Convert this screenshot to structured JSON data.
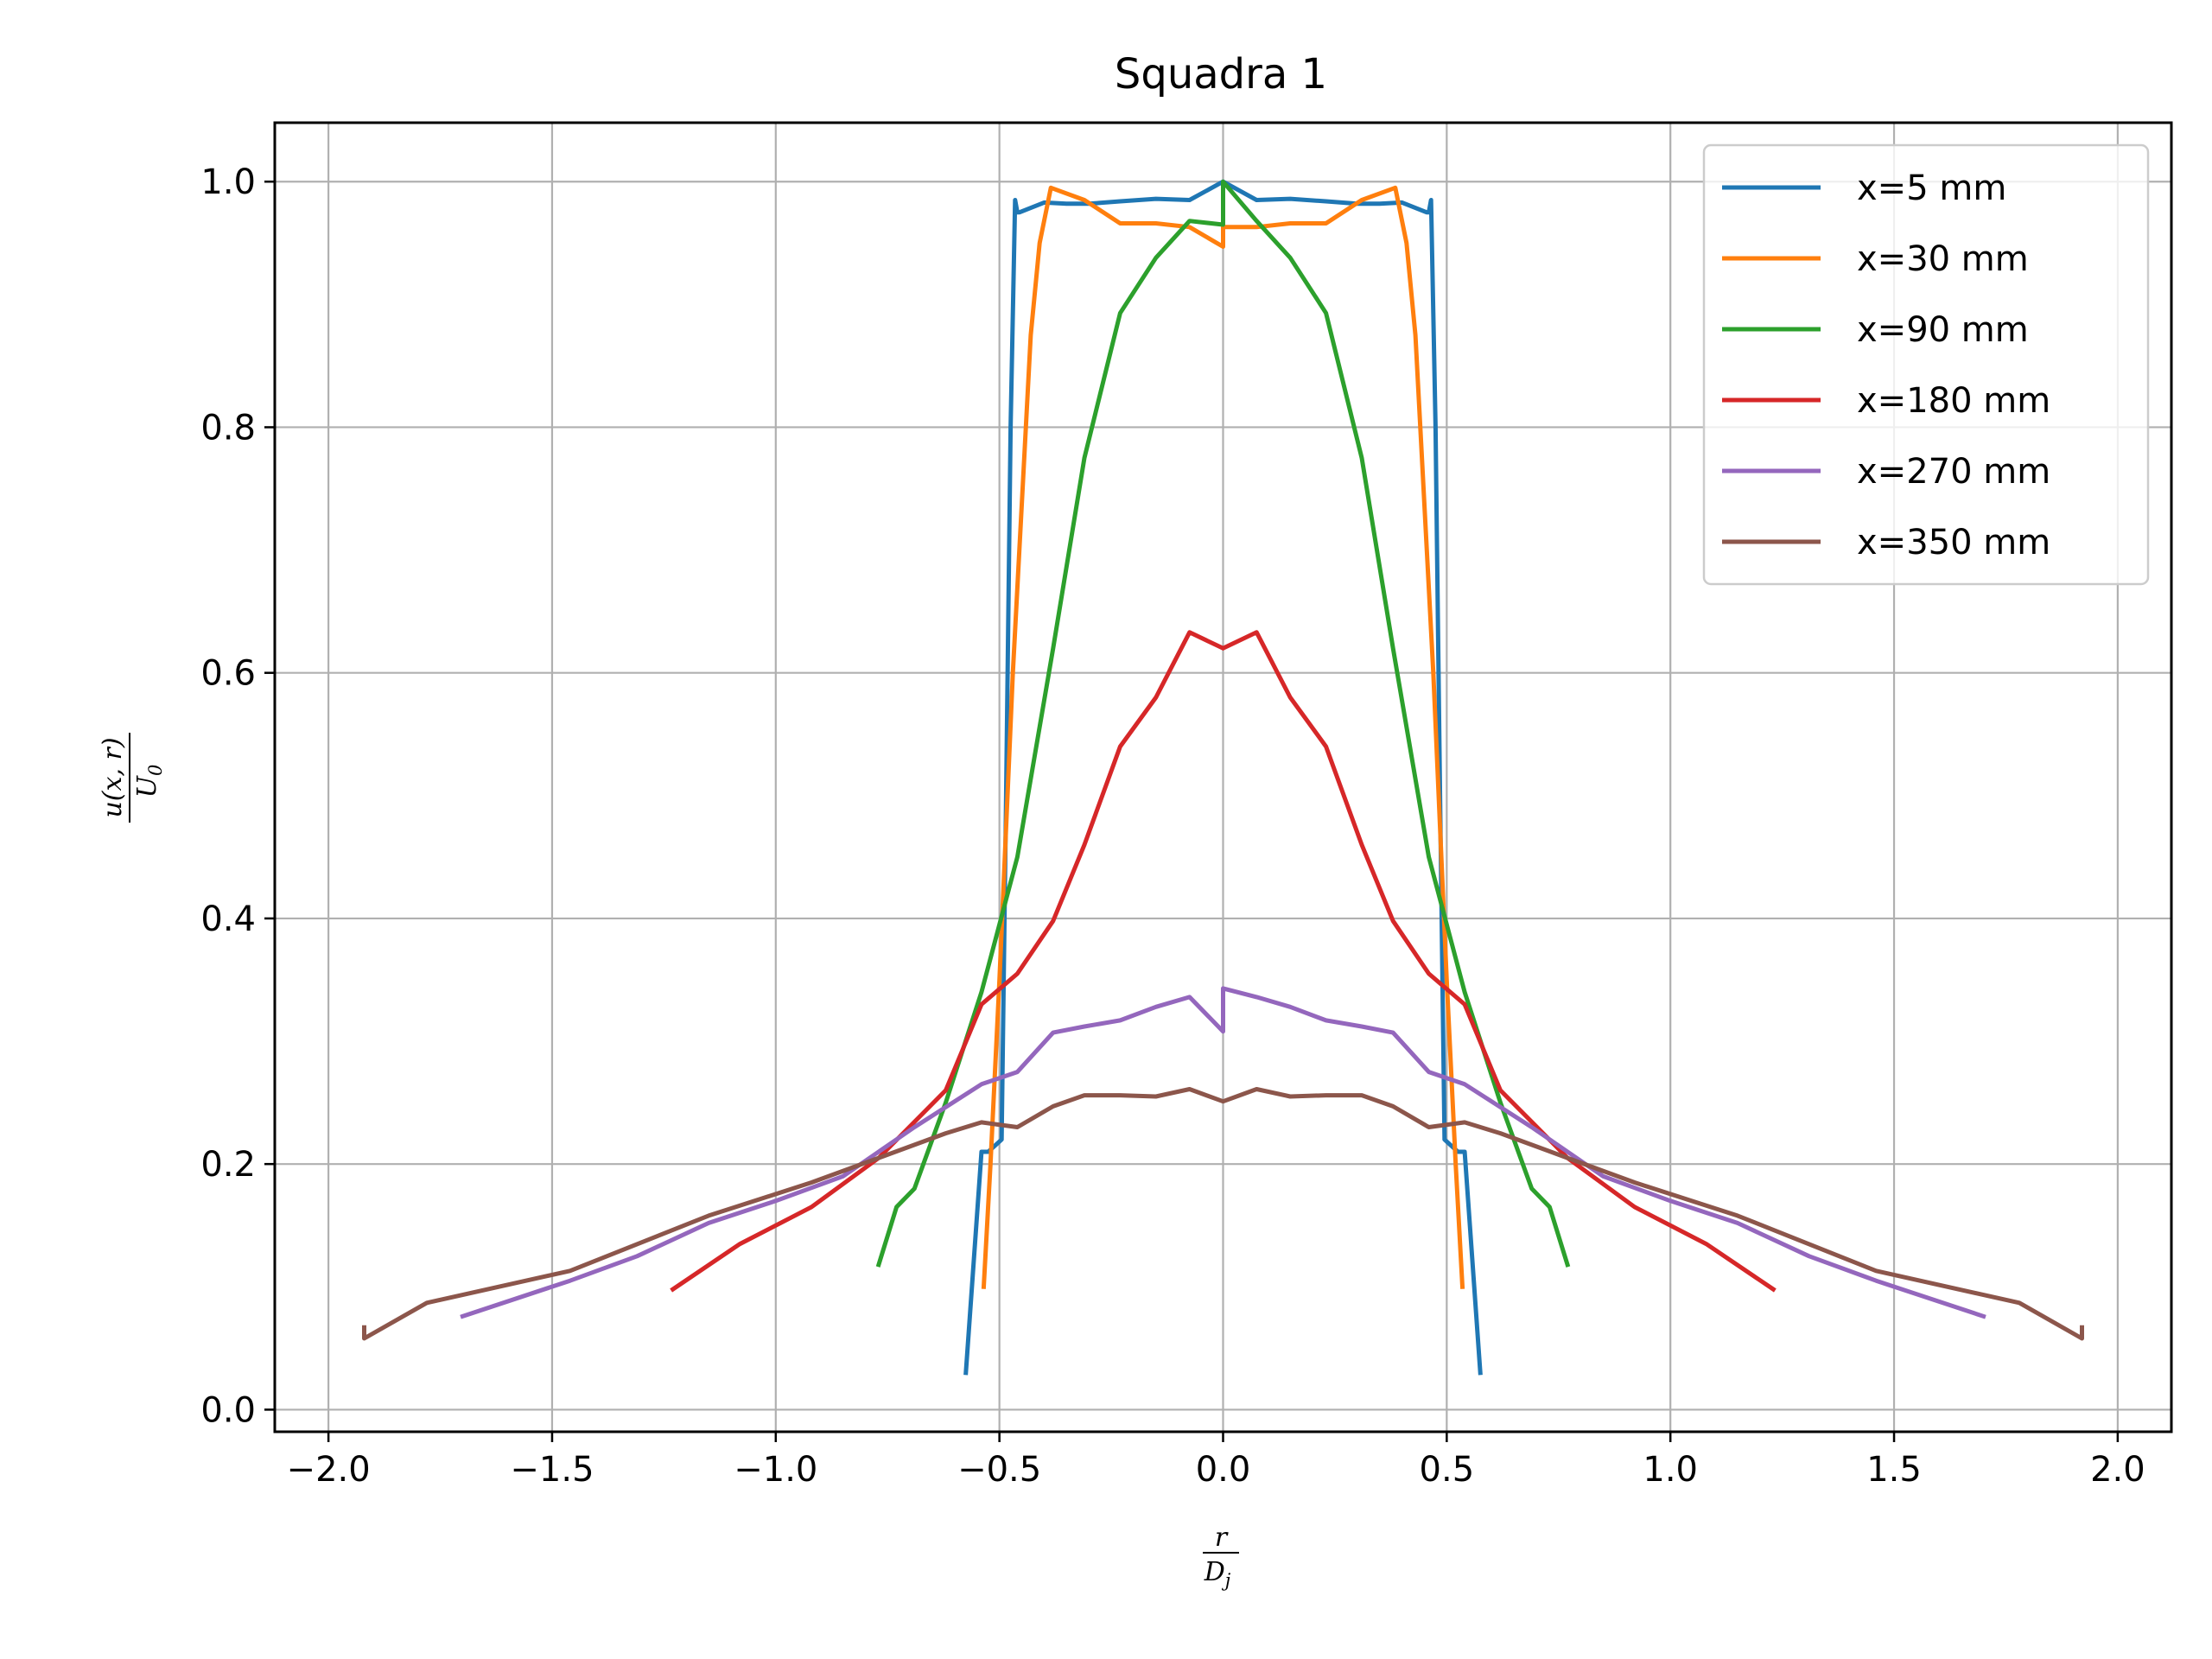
{
  "chart_data": {
    "type": "line",
    "title": "Squadra 1",
    "xlabel": {
      "num": "r",
      "den": "D",
      "den_sub": "j"
    },
    "ylabel": {
      "num": "u(x, r)",
      "den": "U",
      "den_sub": "0"
    },
    "xlim": [
      -2.12,
      2.12
    ],
    "ylim": [
      -0.018,
      1.048
    ],
    "xticks": [
      -2.0,
      -1.5,
      -1.0,
      -0.5,
      0.0,
      0.5,
      1.0,
      1.5,
      2.0
    ],
    "xtick_labels": [
      "−2.0",
      "−1.5",
      "−1.0",
      "−0.5",
      "0.0",
      "0.5",
      "1.0",
      "1.5",
      "2.0"
    ],
    "yticks": [
      0.0,
      0.2,
      0.4,
      0.6,
      0.8,
      1.0
    ],
    "ytick_labels": [
      "0.0",
      "0.2",
      "0.4",
      "0.6",
      "0.8",
      "1.0"
    ],
    "grid": true,
    "legend_position": "top-right",
    "series": [
      {
        "name": "x=5 mm",
        "color": "#1f77b4",
        "x": [
          -0.575,
          -0.54,
          -0.525,
          -0.51,
          -0.495,
          -0.485,
          -0.475,
          -0.465,
          -0.46,
          -0.455,
          -0.4,
          -0.35,
          -0.3,
          -0.23,
          -0.15,
          -0.075,
          0.0,
          0.075,
          0.15,
          0.23,
          0.3,
          0.35,
          0.4,
          0.455,
          0.46,
          0.465,
          0.475,
          0.485,
          0.495,
          0.51,
          0.525,
          0.54,
          0.575
        ],
        "y": [
          0.03,
          0.21,
          0.21,
          0.215,
          0.22,
          0.5,
          0.8,
          0.985,
          0.975,
          0.975,
          0.983,
          0.982,
          0.982,
          0.984,
          0.986,
          0.985,
          1.0,
          0.985,
          0.986,
          0.984,
          0.982,
          0.982,
          0.983,
          0.975,
          0.975,
          0.985,
          0.8,
          0.5,
          0.22,
          0.215,
          0.21,
          0.21,
          0.03
        ]
      },
      {
        "name": "x=30 mm",
        "color": "#ff7f0e",
        "x": [
          -0.535,
          -0.52,
          -0.5,
          -0.47,
          -0.43,
          -0.41,
          -0.385,
          -0.31,
          -0.23,
          -0.15,
          -0.075,
          0.0,
          0.0,
          0.075,
          0.15,
          0.23,
          0.31,
          0.385,
          0.41,
          0.43,
          0.47,
          0.5,
          0.52,
          0.535
        ],
        "y": [
          0.1,
          0.2,
          0.35,
          0.6,
          0.875,
          0.95,
          0.995,
          0.985,
          0.966,
          0.966,
          0.963,
          0.947,
          0.963,
          0.963,
          0.966,
          0.966,
          0.985,
          0.995,
          0.95,
          0.875,
          0.6,
          0.35,
          0.2,
          0.1
        ]
      },
      {
        "name": "x=90 mm",
        "color": "#2ca02c",
        "x": [
          -0.77,
          -0.73,
          -0.69,
          -0.62,
          -0.54,
          -0.46,
          -0.38,
          -0.31,
          -0.23,
          -0.15,
          -0.075,
          0.0,
          0.0,
          0.075,
          0.15,
          0.23,
          0.31,
          0.38,
          0.46,
          0.54,
          0.62,
          0.69,
          0.73,
          0.77
        ],
        "y": [
          0.118,
          0.165,
          0.18,
          0.25,
          0.34,
          0.45,
          0.62,
          0.775,
          0.893,
          0.938,
          0.968,
          0.965,
          1.0,
          0.968,
          0.938,
          0.893,
          0.775,
          0.62,
          0.45,
          0.34,
          0.25,
          0.18,
          0.165,
          0.118
        ]
      },
      {
        "name": "x=180 mm",
        "color": "#d62728",
        "x": [
          -1.23,
          -1.08,
          -0.92,
          -0.77,
          -0.62,
          -0.54,
          -0.46,
          -0.38,
          -0.31,
          -0.23,
          -0.15,
          -0.075,
          0.0,
          0.075,
          0.15,
          0.23,
          0.31,
          0.38,
          0.46,
          0.54,
          0.62,
          0.77,
          0.92,
          1.08,
          1.23
        ],
        "y": [
          0.098,
          0.135,
          0.165,
          0.205,
          0.26,
          0.33,
          0.355,
          0.398,
          0.46,
          0.54,
          0.58,
          0.633,
          0.62,
          0.633,
          0.58,
          0.54,
          0.46,
          0.398,
          0.355,
          0.33,
          0.26,
          0.205,
          0.165,
          0.135,
          0.098
        ]
      },
      {
        "name": "x=270 mm",
        "color": "#9467bd",
        "x": [
          -1.7,
          -1.46,
          -1.31,
          -1.15,
          -1.0,
          -0.85,
          -0.69,
          -0.54,
          -0.46,
          -0.38,
          -0.31,
          -0.23,
          -0.15,
          -0.075,
          0.0,
          0.0,
          0.075,
          0.15,
          0.23,
          0.31,
          0.38,
          0.46,
          0.54,
          0.69,
          0.85,
          1.0,
          1.15,
          1.31,
          1.46,
          1.7
        ],
        "y": [
          0.076,
          0.105,
          0.125,
          0.152,
          0.17,
          0.19,
          0.23,
          0.265,
          0.275,
          0.307,
          0.312,
          0.317,
          0.328,
          0.336,
          0.308,
          0.343,
          0.336,
          0.328,
          0.317,
          0.312,
          0.307,
          0.275,
          0.265,
          0.23,
          0.19,
          0.17,
          0.152,
          0.125,
          0.105,
          0.076
        ]
      },
      {
        "name": "x=350 mm",
        "color": "#8c564b",
        "x": [
          -1.92,
          -1.92,
          -1.78,
          -1.46,
          -1.15,
          -0.92,
          -0.77,
          -0.62,
          -0.54,
          -0.46,
          -0.38,
          -0.31,
          -0.23,
          -0.15,
          -0.075,
          0.0,
          0.075,
          0.15,
          0.23,
          0.31,
          0.38,
          0.46,
          0.54,
          0.62,
          0.77,
          0.92,
          1.15,
          1.46,
          1.78,
          1.92,
          1.92
        ],
        "y": [
          0.067,
          0.058,
          0.087,
          0.113,
          0.158,
          0.185,
          0.205,
          0.225,
          0.234,
          0.23,
          0.247,
          0.256,
          0.256,
          0.255,
          0.261,
          0.251,
          0.261,
          0.255,
          0.256,
          0.256,
          0.247,
          0.23,
          0.234,
          0.225,
          0.205,
          0.185,
          0.158,
          0.113,
          0.087,
          0.058,
          0.067
        ]
      }
    ]
  }
}
